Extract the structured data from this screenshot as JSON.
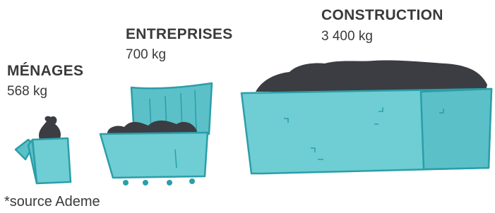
{
  "items": [
    {
      "label": "MÉNAGES",
      "amount": "568 kg"
    },
    {
      "label": "ENTREPRISES",
      "amount": "700 kg"
    },
    {
      "label": "CONSTRUCTION",
      "amount": "3 400 kg"
    }
  ],
  "footnote": "*source Ademe"
}
